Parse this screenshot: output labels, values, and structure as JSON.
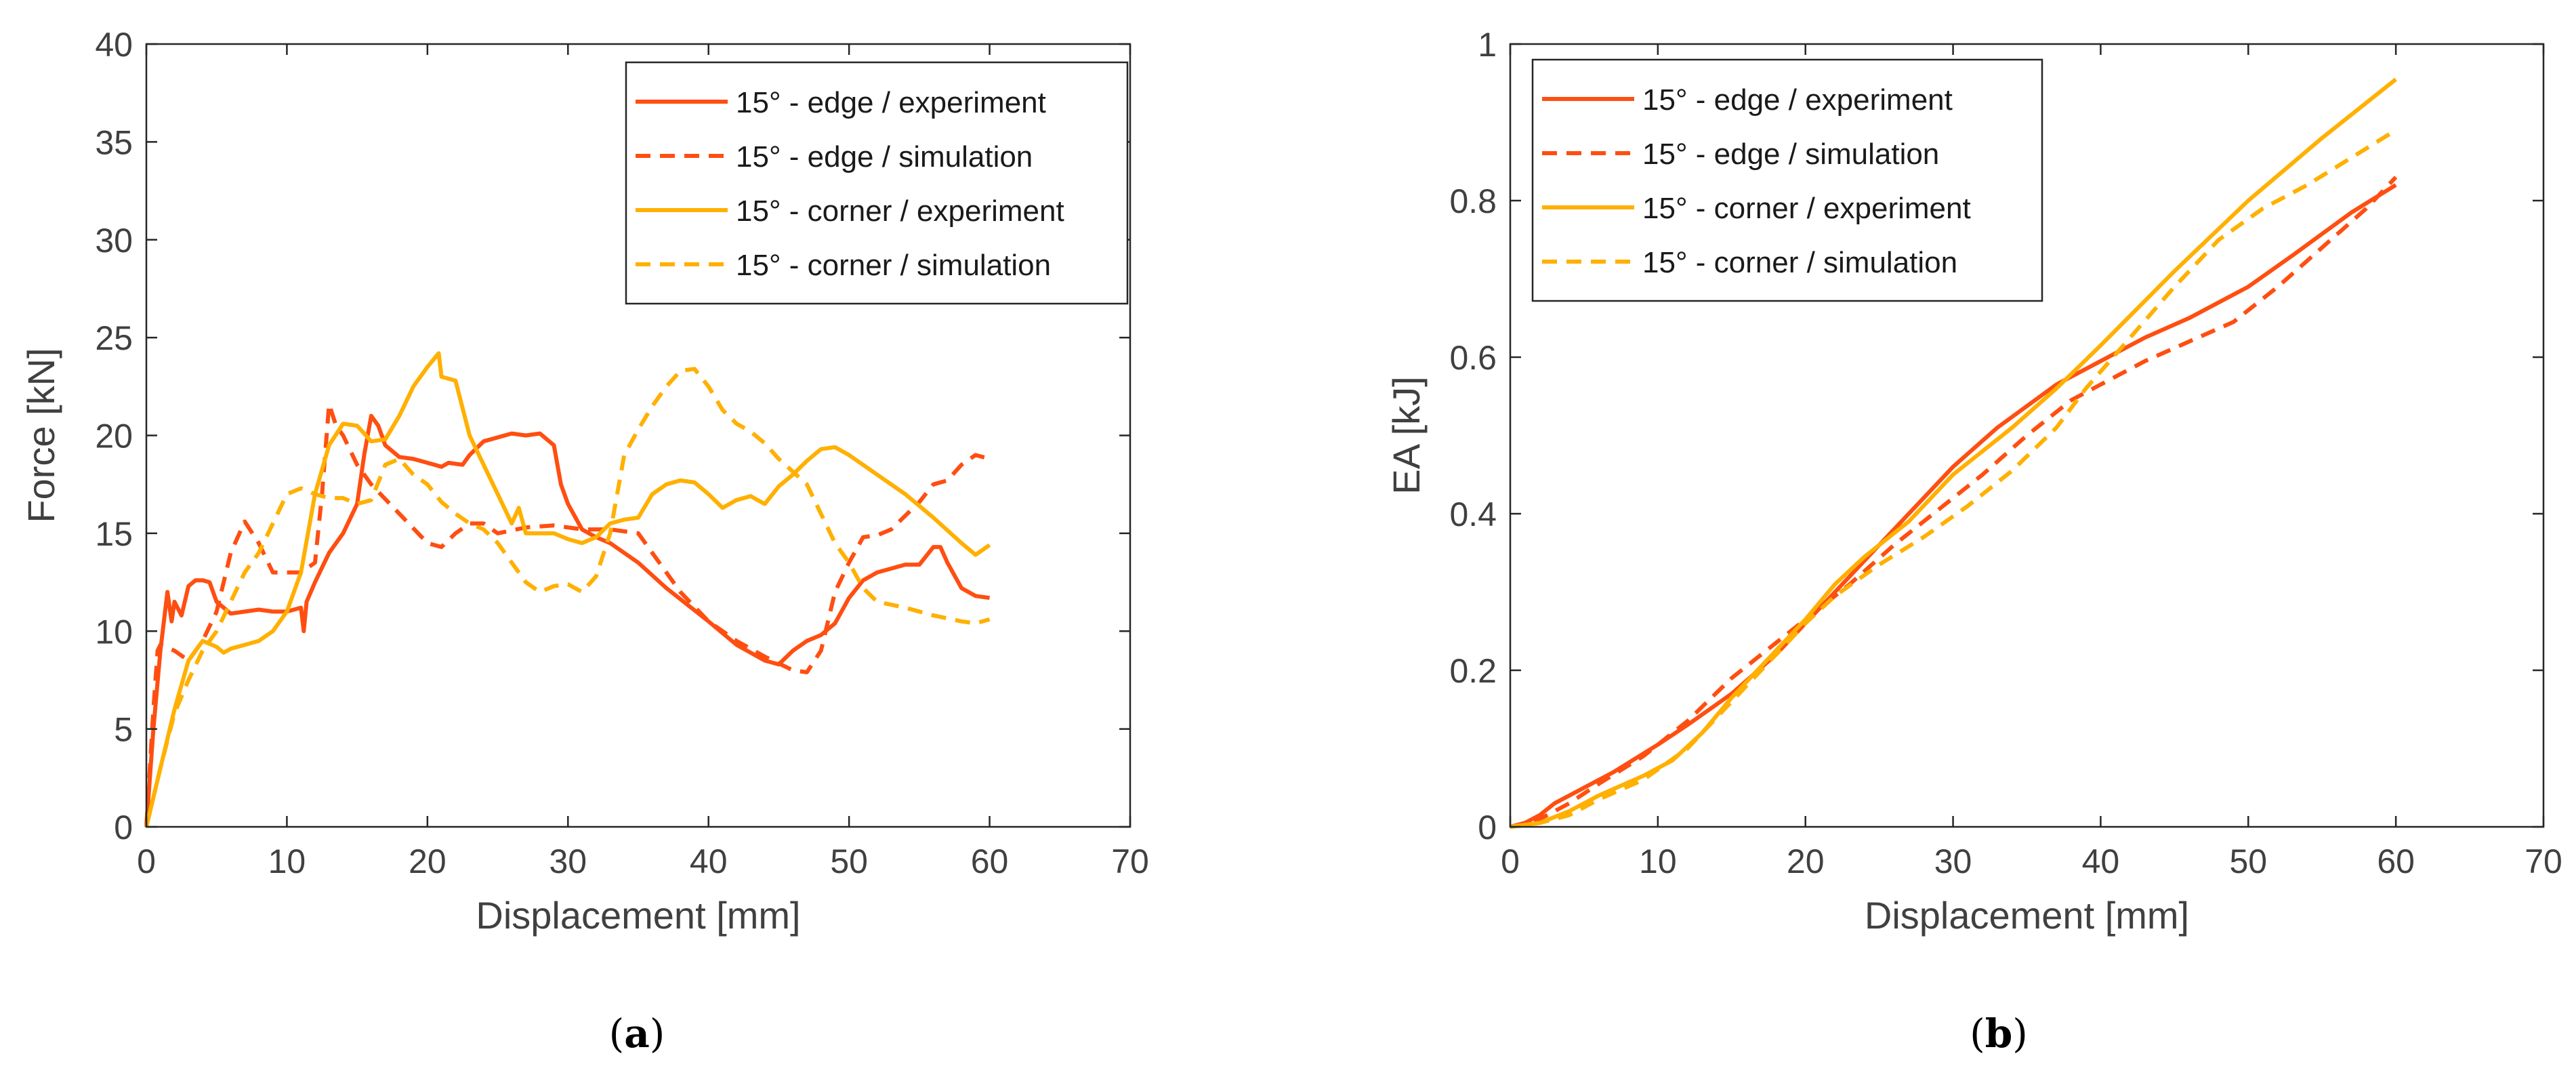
{
  "colors": {
    "edge": "#FF4E11",
    "corner": "#FFB000",
    "axis": "#262626",
    "text": "#404040"
  },
  "chart_data": [
    {
      "type": "line",
      "caption_letter": "a",
      "xlabel": "Displacement [mm]",
      "ylabel": "Force [kN]",
      "xlim": [
        0,
        70
      ],
      "ylim": [
        0,
        40
      ],
      "xticks": [
        "0",
        "10",
        "20",
        "30",
        "40",
        "50",
        "60",
        "70"
      ],
      "yticks": [
        "0",
        "5",
        "10",
        "15",
        "20",
        "25",
        "30",
        "35",
        "40"
      ],
      "legend_position": "top-right",
      "grid": false,
      "series": [
        {
          "name": "15° - edge / experiment",
          "color_key": "edge",
          "style": "solid",
          "x": [
            0,
            0.5,
            1,
            1.5,
            1.8,
            2,
            2.5,
            3,
            3.5,
            4,
            4.5,
            5,
            6,
            7,
            8,
            9,
            10,
            11,
            11.2,
            11.4,
            12,
            13,
            14,
            15,
            15.5,
            16,
            16.5,
            17,
            18,
            19,
            20,
            21,
            21.5,
            22.5,
            23,
            24,
            26,
            27,
            28,
            29,
            29.5,
            30,
            31,
            32,
            33,
            35,
            37,
            40,
            42,
            44,
            45,
            46,
            47,
            48,
            49,
            50,
            51,
            52,
            53,
            54,
            55,
            56,
            56.5,
            57,
            58,
            59,
            60
          ],
          "y": [
            0,
            5,
            9,
            12,
            10.5,
            11.5,
            10.8,
            12.3,
            12.6,
            12.6,
            12.5,
            11.5,
            10.9,
            11,
            11.1,
            11,
            11,
            11.2,
            10,
            11.5,
            12.5,
            14,
            15,
            16.5,
            19,
            21,
            20.5,
            19.5,
            18.9,
            18.8,
            18.6,
            18.4,
            18.6,
            18.5,
            19,
            19.7,
            20.1,
            20,
            20.1,
            19.5,
            17.5,
            16.5,
            15.2,
            14.8,
            14.5,
            13.5,
            12.2,
            10.5,
            9.3,
            8.5,
            8.3,
            9,
            9.5,
            9.8,
            10.4,
            11.7,
            12.6,
            13,
            13.2,
            13.4,
            13.4,
            14.3,
            14.3,
            13.5,
            12.2,
            11.8,
            11.7
          ]
        },
        {
          "name": "15° - edge / simulation",
          "color_key": "edge",
          "style": "dashed",
          "x": [
            0,
            0.5,
            0.8,
            1,
            2,
            3,
            4,
            5,
            6,
            7,
            8,
            9,
            10,
            11,
            12,
            12.5,
            13,
            13.5,
            14,
            15,
            16,
            18,
            20,
            21,
            22,
            23,
            24,
            25,
            27,
            29,
            31,
            33,
            35,
            36,
            38,
            40,
            42,
            44,
            46,
            47,
            48,
            49,
            50,
            51,
            52,
            53,
            55,
            56,
            57,
            58,
            59,
            60
          ],
          "y": [
            0,
            6,
            9,
            9.3,
            9,
            8.5,
            9.5,
            11,
            14,
            15.6,
            14.5,
            13,
            13,
            13,
            13.5,
            17,
            21.6,
            20.5,
            20,
            18.5,
            17.5,
            16,
            14.5,
            14.3,
            15,
            15.5,
            15.5,
            15,
            15.3,
            15.4,
            15.2,
            15.2,
            15,
            14,
            12,
            10.5,
            9.5,
            8.7,
            8,
            7.9,
            9,
            12,
            13.5,
            14.8,
            14.9,
            15.2,
            16.6,
            17.5,
            17.7,
            18.5,
            19,
            18.8
          ]
        },
        {
          "name": "15° - corner / experiment",
          "color_key": "corner",
          "style": "solid",
          "x": [
            0,
            1,
            2,
            3,
            4,
            5,
            5.5,
            6,
            7,
            8,
            9,
            10,
            11,
            12,
            13,
            14,
            15,
            16,
            17,
            18,
            19,
            20,
            20.8,
            21,
            22,
            23,
            24,
            25,
            26,
            26.5,
            27,
            28,
            29,
            30,
            31,
            32,
            33,
            34,
            35,
            36,
            37,
            38,
            39,
            40,
            41,
            42,
            43,
            44,
            45,
            46,
            47,
            48,
            49,
            50,
            52,
            54,
            56,
            58,
            59,
            60
          ],
          "y": [
            0,
            3,
            6,
            8.5,
            9.5,
            9.2,
            8.9,
            9.1,
            9.3,
            9.5,
            10,
            11,
            13,
            17,
            19.5,
            20.6,
            20.5,
            19.7,
            19.8,
            21,
            22.5,
            23.5,
            24.2,
            23,
            22.8,
            20,
            18.5,
            17,
            15.5,
            16.3,
            15,
            15,
            15,
            14.7,
            14.5,
            14.8,
            15.5,
            15.7,
            15.8,
            17,
            17.5,
            17.7,
            17.6,
            17,
            16.3,
            16.7,
            16.9,
            16.5,
            17.4,
            18,
            18.7,
            19.3,
            19.4,
            19,
            18,
            17,
            15.8,
            14.5,
            13.9,
            14.4
          ]
        },
        {
          "name": "15° - corner / simulation",
          "color_key": "corner",
          "style": "dashed",
          "x": [
            0,
            1,
            2,
            3,
            4,
            5,
            6,
            7,
            8,
            9,
            10,
            11,
            12,
            13,
            14,
            15,
            16,
            17,
            18,
            19,
            20,
            21,
            22,
            23,
            24,
            25,
            26,
            27,
            28,
            29,
            30,
            31,
            32,
            33,
            34,
            35,
            36,
            37,
            38,
            39,
            40,
            41,
            42,
            43,
            44,
            45,
            47,
            49,
            50,
            51,
            52,
            54,
            56,
            58,
            59,
            60
          ],
          "y": [
            0,
            3,
            5.8,
            7.5,
            9,
            10,
            11.5,
            13,
            14,
            15.5,
            17,
            17.3,
            17,
            16.8,
            16.8,
            16.5,
            16.7,
            18.5,
            18.8,
            18,
            17.5,
            16.6,
            16,
            15.5,
            15.2,
            14.5,
            13.5,
            12.5,
            12,
            12.3,
            12.4,
            12,
            12.8,
            15,
            19,
            20.3,
            21.5,
            22.5,
            23.3,
            23.4,
            22.5,
            21.3,
            20.6,
            20.2,
            19.6,
            18.8,
            17.5,
            14.5,
            13.5,
            12.2,
            11.5,
            11.2,
            10.8,
            10.5,
            10.4,
            10.6
          ]
        }
      ]
    },
    {
      "type": "line",
      "caption_letter": "b",
      "xlabel": "Displacement [mm]",
      "ylabel": "EA [kJ]",
      "xlim": [
        0,
        70
      ],
      "ylim": [
        0,
        1
      ],
      "xticks": [
        "0",
        "10",
        "20",
        "30",
        "40",
        "50",
        "60",
        "70"
      ],
      "yticks": [
        "0",
        "0.2",
        "0.4",
        "0.6",
        "0.8",
        "1"
      ],
      "legend_position": "top-left",
      "grid": false,
      "series": [
        {
          "name": "15° - edge / experiment",
          "color_key": "edge",
          "style": "solid",
          "x": [
            0,
            1,
            2,
            3,
            5,
            7,
            10,
            12,
            15,
            18,
            20,
            22,
            25,
            28,
            30,
            33,
            37,
            40,
            43,
            46,
            50,
            53,
            57,
            60
          ],
          "y": [
            0,
            0.005,
            0.015,
            0.03,
            0.05,
            0.07,
            0.105,
            0.13,
            0.17,
            0.22,
            0.26,
            0.3,
            0.36,
            0.42,
            0.46,
            0.51,
            0.565,
            0.595,
            0.625,
            0.65,
            0.69,
            0.73,
            0.785,
            0.82
          ]
        },
        {
          "name": "15° - edge / simulation",
          "color_key": "edge",
          "style": "dashed",
          "x": [
            0,
            2,
            4,
            6,
            9,
            12,
            15,
            18,
            20,
            23,
            26,
            29,
            32,
            35,
            38,
            40,
            43,
            46,
            49,
            52,
            55,
            58,
            60
          ],
          "y": [
            0,
            0.01,
            0.03,
            0.055,
            0.09,
            0.135,
            0.19,
            0.235,
            0.265,
            0.31,
            0.36,
            0.405,
            0.45,
            0.5,
            0.545,
            0.565,
            0.595,
            0.62,
            0.645,
            0.69,
            0.74,
            0.79,
            0.83
          ]
        },
        {
          "name": "15° - corner / experiment",
          "color_key": "corner",
          "style": "solid",
          "x": [
            0,
            2,
            4,
            6,
            9,
            11,
            13,
            15,
            18,
            20,
            22,
            24,
            27,
            30,
            34,
            37,
            40,
            45,
            50,
            55,
            60
          ],
          "y": [
            0,
            0.005,
            0.02,
            0.04,
            0.065,
            0.085,
            0.12,
            0.165,
            0.225,
            0.265,
            0.31,
            0.345,
            0.39,
            0.45,
            0.51,
            0.56,
            0.615,
            0.71,
            0.8,
            0.88,
            0.955
          ]
        },
        {
          "name": "15° - corner / simulation",
          "color_key": "corner",
          "style": "dashed",
          "x": [
            0,
            2,
            4,
            6,
            9,
            12,
            15,
            18,
            20,
            22,
            25,
            28,
            31,
            34,
            37,
            39,
            42,
            45,
            48,
            51,
            54,
            57,
            60
          ],
          "y": [
            0,
            0.005,
            0.015,
            0.035,
            0.06,
            0.1,
            0.16,
            0.22,
            0.26,
            0.295,
            0.335,
            0.37,
            0.41,
            0.455,
            0.51,
            0.56,
            0.625,
            0.69,
            0.75,
            0.79,
            0.82,
            0.855,
            0.89
          ]
        }
      ]
    }
  ]
}
